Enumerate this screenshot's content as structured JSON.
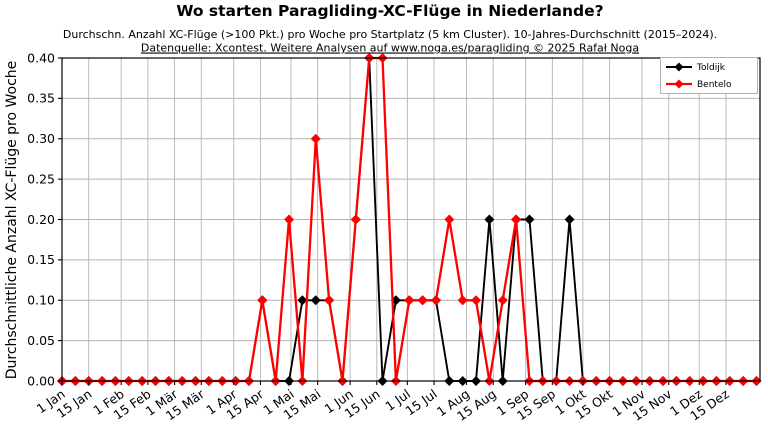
{
  "figure": {
    "title": "Wo starten Paragliding-XC-Flüge in Niederlande?",
    "subtitle": "Durchschn. Anzahl XC-Flüge (>100 Pkt.) pro Woche pro Startplatz (5 km Cluster). 10-Jahres-Durchschnitt (2015–2024).",
    "source_line": "Datenquelle: Xcontest. Weitere Analysen auf www.noga.es/paragliding © 2025 Rafał Noga",
    "ylabel": "Durchschnittliche Anzahl XC-Flüge pro Woche"
  },
  "chart_data": {
    "type": "line",
    "marker": "diamond",
    "grid": true,
    "legend_position": "top-right",
    "ylim": [
      0,
      0.4
    ],
    "yticks": {
      "values": [
        0,
        0.05,
        0.1,
        0.15,
        0.2,
        0.25,
        0.3,
        0.35,
        0.4
      ],
      "labels": [
        "0.00",
        "0.05",
        "0.10",
        "0.15",
        "0.20",
        "0.25",
        "0.30",
        "0.35",
        "0.40"
      ]
    },
    "xticks": [
      {
        "day": 1,
        "label": "1 Jan"
      },
      {
        "day": 15,
        "label": "15 Jan"
      },
      {
        "day": 32,
        "label": "1 Feb"
      },
      {
        "day": 46,
        "label": "15 Feb"
      },
      {
        "day": 60,
        "label": "1 Mär"
      },
      {
        "day": 74,
        "label": "15 Mär"
      },
      {
        "day": 91,
        "label": "1 Apr"
      },
      {
        "day": 105,
        "label": "15 Apr"
      },
      {
        "day": 121,
        "label": "1 Mai"
      },
      {
        "day": 135,
        "label": "15 Mai"
      },
      {
        "day": 152,
        "label": "1 Jun"
      },
      {
        "day": 166,
        "label": "15 Jun"
      },
      {
        "day": 182,
        "label": "1 Jul"
      },
      {
        "day": 196,
        "label": "15 Jul"
      },
      {
        "day": 213,
        "label": "1 Aug"
      },
      {
        "day": 227,
        "label": "15 Aug"
      },
      {
        "day": 244,
        "label": "1 Sep"
      },
      {
        "day": 258,
        "label": "15 Sep"
      },
      {
        "day": 274,
        "label": "1 Okt"
      },
      {
        "day": 288,
        "label": "15 Okt"
      },
      {
        "day": 305,
        "label": "1 Nov"
      },
      {
        "day": 319,
        "label": "15 Nov"
      },
      {
        "day": 335,
        "label": "1 Dez"
      },
      {
        "day": 349,
        "label": "15 Dez"
      }
    ],
    "x_days": [
      1,
      8,
      15,
      22,
      29,
      36,
      43,
      50,
      57,
      64,
      71,
      78,
      85,
      92,
      99,
      106,
      113,
      120,
      127,
      134,
      141,
      148,
      155,
      162,
      169,
      176,
      183,
      190,
      197,
      204,
      211,
      218,
      225,
      232,
      239,
      246,
      253,
      260,
      267,
      274,
      281,
      288,
      295,
      302,
      309,
      316,
      323,
      330,
      337,
      344,
      351,
      358,
      365
    ],
    "series": [
      {
        "name": "Toldijk",
        "color": "#000000",
        "line_width": 1.9,
        "values": [
          0,
          0,
          0,
          0,
          0,
          0,
          0,
          0,
          0,
          0,
          0,
          0,
          0,
          0,
          0,
          0.1,
          0,
          0,
          0.1,
          0.1,
          0.1,
          0,
          0.2,
          0.4,
          0,
          0.1,
          0.1,
          0.1,
          0.1,
          0,
          0,
          0,
          0.2,
          0,
          0.2,
          0.2,
          0,
          0,
          0.2,
          0,
          0,
          0,
          0,
          0,
          0,
          0,
          0,
          0,
          0,
          0,
          0,
          0,
          0
        ]
      },
      {
        "name": "Bentelo",
        "color": "#ff0000",
        "line_width": 2.3,
        "values": [
          0,
          0,
          0,
          0,
          0,
          0,
          0,
          0,
          0,
          0,
          0,
          0,
          0,
          0,
          0,
          0.1,
          0,
          0.2,
          0,
          0.3,
          0.1,
          0,
          0.2,
          0.4,
          0.4,
          0,
          0.1,
          0.1,
          0.1,
          0.2,
          0.1,
          0.1,
          0,
          0.1,
          0.2,
          0,
          0,
          0,
          0,
          0,
          0,
          0,
          0,
          0,
          0,
          0,
          0,
          0,
          0,
          0,
          0,
          0,
          0
        ]
      }
    ],
    "style": {
      "grid_color": "#b4b4b4",
      "axis_color": "#000000",
      "background": "#ffffff",
      "legend_border": "#b3b3b3",
      "marker_half_size": 5
    }
  }
}
